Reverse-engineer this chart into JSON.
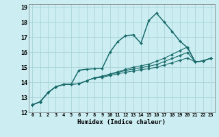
{
  "xlabel": "Humidex (Indice chaleur)",
  "background_color": "#cceef2",
  "grid_color": "#aad4d8",
  "line_color": "#1a6b6b",
  "xlim": [
    -0.5,
    23.5
  ],
  "ylim": [
    12,
    19.2
  ],
  "xticks": [
    0,
    1,
    2,
    3,
    4,
    5,
    6,
    7,
    8,
    9,
    10,
    11,
    12,
    13,
    14,
    15,
    16,
    17,
    18,
    19,
    20,
    21,
    22,
    23
  ],
  "yticks": [
    12,
    13,
    14,
    15,
    16,
    17,
    18,
    19
  ],
  "series": [
    [
      12.5,
      12.7,
      13.3,
      13.7,
      13.85,
      13.87,
      14.8,
      14.87,
      14.9,
      14.92,
      16.0,
      16.7,
      17.1,
      17.15,
      16.6,
      18.1,
      18.6,
      18.0,
      17.4,
      16.75,
      16.3,
      15.35,
      15.42,
      15.6
    ],
    [
      12.5,
      12.7,
      13.3,
      13.7,
      13.85,
      13.87,
      13.9,
      14.1,
      14.3,
      14.4,
      14.55,
      14.7,
      14.85,
      15.0,
      15.1,
      15.2,
      15.4,
      15.6,
      15.85,
      16.1,
      16.35,
      15.35,
      15.42,
      15.6
    ],
    [
      12.5,
      12.7,
      13.3,
      13.7,
      13.85,
      13.87,
      13.9,
      14.1,
      14.3,
      14.38,
      14.52,
      14.65,
      14.78,
      14.88,
      14.97,
      15.07,
      15.18,
      15.38,
      15.58,
      15.78,
      15.98,
      15.35,
      15.42,
      15.6
    ],
    [
      12.5,
      12.7,
      13.3,
      13.7,
      13.85,
      13.87,
      13.9,
      14.1,
      14.28,
      14.33,
      14.45,
      14.56,
      14.66,
      14.75,
      14.84,
      14.9,
      15.0,
      15.15,
      15.3,
      15.46,
      15.62,
      15.35,
      15.42,
      15.6
    ]
  ]
}
